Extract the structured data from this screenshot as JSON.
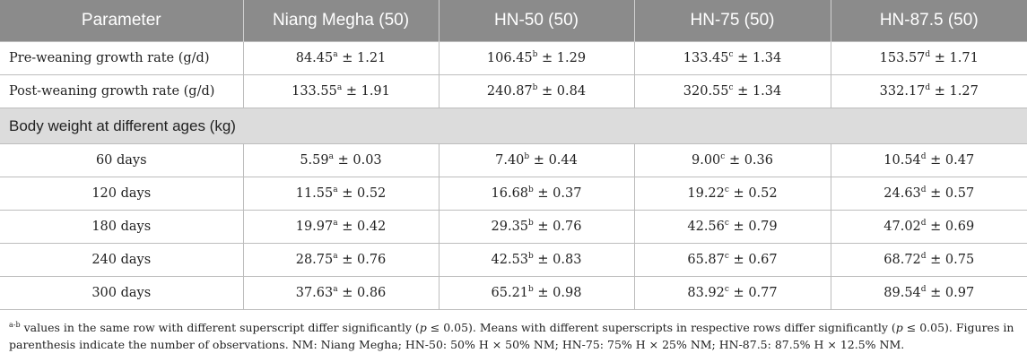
{
  "headers": [
    "Parameter",
    "Niang Megha (50)",
    "HN-50 (50)",
    "HN-75 (50)",
    "HN-87.5 (50)"
  ],
  "rows": [
    {
      "label": "Pre-weaning growth rate (g/d)",
      "cells": [
        {
          "mean": "84.45",
          "sup": "a",
          "sd": "1.21"
        },
        {
          "mean": "106.45",
          "sup": "b",
          "sd": "1.29"
        },
        {
          "mean": "133.45",
          "sup": "c",
          "sd": "1.34"
        },
        {
          "mean": "153.57",
          "sup": "d",
          "sd": "1.71"
        }
      ]
    },
    {
      "label": "Post-weaning growth rate (g/d)",
      "cells": [
        {
          "mean": "133.55",
          "sup": "a",
          "sd": "1.91"
        },
        {
          "mean": "240.87",
          "sup": "b",
          "sd": "0.84"
        },
        {
          "mean": "320.55",
          "sup": "c",
          "sd": "1.34"
        },
        {
          "mean": "332.17",
          "sup": "d",
          "sd": "1.27"
        }
      ]
    }
  ],
  "section_label": "Body weight at different ages (kg)",
  "age_rows": [
    {
      "label": "60 days",
      "cells": [
        {
          "mean": "5.59",
          "sup": "a",
          "sd": "0.03"
        },
        {
          "mean": "7.40",
          "sup": "b",
          "sd": "0.44"
        },
        {
          "mean": "9.00",
          "sup": "c",
          "sd": "0.36"
        },
        {
          "mean": "10.54",
          "sup": "d",
          "sd": "0.47"
        }
      ]
    },
    {
      "label": "120 days",
      "cells": [
        {
          "mean": "11.55",
          "sup": "a",
          "sd": "0.52"
        },
        {
          "mean": "16.68",
          "sup": "b",
          "sd": "0.37"
        },
        {
          "mean": "19.22",
          "sup": "c",
          "sd": "0.52"
        },
        {
          "mean": "24.63",
          "sup": "d",
          "sd": "0.57"
        }
      ]
    },
    {
      "label": "180 days",
      "cells": [
        {
          "mean": "19.97",
          "sup": "a",
          "sd": "0.42"
        },
        {
          "mean": "29.35",
          "sup": "b",
          "sd": "0.76"
        },
        {
          "mean": "42.56",
          "sup": "c",
          "sd": "0.79"
        },
        {
          "mean": "47.02",
          "sup": "d",
          "sd": "0.69"
        }
      ]
    },
    {
      "label": "240 days",
      "cells": [
        {
          "mean": "28.75",
          "sup": "a",
          "sd": "0.76"
        },
        {
          "mean": "42.53",
          "sup": "b",
          "sd": "0.83"
        },
        {
          "mean": "65.87",
          "sup": "c",
          "sd": "0.67"
        },
        {
          "mean": "68.72",
          "sup": "d",
          "sd": "0.75"
        }
      ]
    },
    {
      "label": "300 days",
      "cells": [
        {
          "mean": "37.63",
          "sup": "a",
          "sd": "0.86"
        },
        {
          "mean": "65.21",
          "sup": "b",
          "sd": "0.98"
        },
        {
          "mean": "83.92",
          "sup": "c",
          "sd": "0.77"
        },
        {
          "mean": "89.54",
          "sup": "d",
          "sd": "0.97"
        }
      ]
    }
  ],
  "pm": "±",
  "footnote": {
    "sup": "a-b",
    "text_1": " values in the same row with different superscript differ significantly (",
    "p_symbol": "p",
    "text_2": " ≤ 0.05). Means with different superscripts in respective rows differ significantly (",
    "text_3": " ≤ 0.05). Figures in parenthesis indicate the number of observations. NM: Niang Megha; HN-50: 50% H × 50% NM; HN-75: 75% H × 25% NM; HN-87.5: 87.5% H × 12.5% NM."
  },
  "colors": {
    "header_bg": "#8b8b8b",
    "section_bg": "#dcdcdc",
    "border": "#bdbdbd"
  }
}
